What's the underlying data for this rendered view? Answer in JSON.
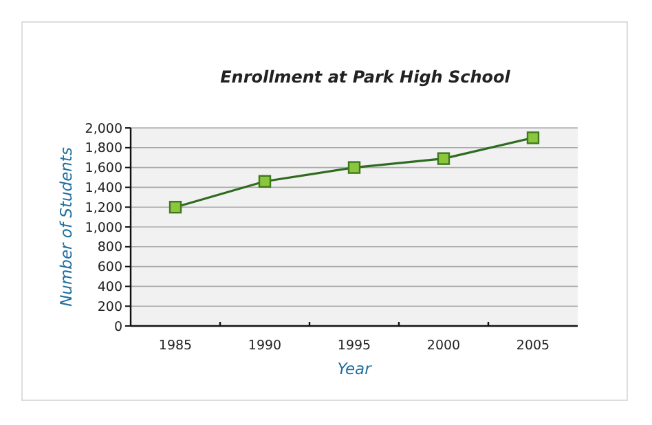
{
  "chart_data": {
    "type": "line",
    "title": "Enrollment at Park High School",
    "xlabel": "Year",
    "ylabel": "Number of Students",
    "categories": [
      "1985",
      "1990",
      "1995",
      "2000",
      "2005"
    ],
    "series": [
      {
        "color": "#2e6b1e",
        "values": [
          1200,
          1460,
          1600,
          1690,
          1900
        ]
      }
    ],
    "ylim": [
      0,
      2000
    ],
    "yticks": [
      {
        "value": 0,
        "label": "0"
      },
      {
        "value": 200,
        "label": "200"
      },
      {
        "value": 400,
        "label": "400"
      },
      {
        "value": 600,
        "label": "600"
      },
      {
        "value": 800,
        "label": "800"
      },
      {
        "value": 1000,
        "label": "1,000"
      },
      {
        "value": 1200,
        "label": "1,200"
      },
      {
        "value": 1400,
        "label": "1,400"
      },
      {
        "value": 1600,
        "label": "1,600"
      },
      {
        "value": 1800,
        "label": "1,800"
      },
      {
        "value": 2000,
        "label": "2,000"
      }
    ],
    "grid": "y",
    "marker": "square",
    "line_style": "solid"
  }
}
